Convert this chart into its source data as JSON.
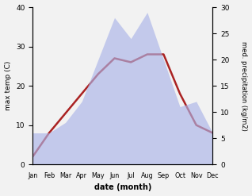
{
  "months": [
    "Jan",
    "Feb",
    "Mar",
    "Apr",
    "May",
    "Jun",
    "Jul",
    "Aug",
    "Sep",
    "Oct",
    "Nov",
    "Dec"
  ],
  "temperature": [
    2,
    8,
    13,
    18,
    23,
    27,
    26,
    28,
    28,
    18,
    10,
    8
  ],
  "precipitation": [
    6,
    6,
    8,
    12,
    20,
    28,
    24,
    29,
    20,
    11,
    12,
    6
  ],
  "temp_ylim": [
    0,
    40
  ],
  "precip_ylim": [
    0,
    30
  ],
  "temp_color": "#aa2222",
  "precip_fill_color": "#aab4e8",
  "precip_fill_alpha": 0.65,
  "xlabel": "date (month)",
  "ylabel_left": "max temp (C)",
  "ylabel_right": "med. precipitation (kg/m2)",
  "bg_color": "#f2f2f2",
  "temp_linewidth": 1.8,
  "left_yticks": [
    0,
    10,
    20,
    30,
    40
  ],
  "right_yticks": [
    0,
    5,
    10,
    15,
    20,
    25,
    30
  ]
}
